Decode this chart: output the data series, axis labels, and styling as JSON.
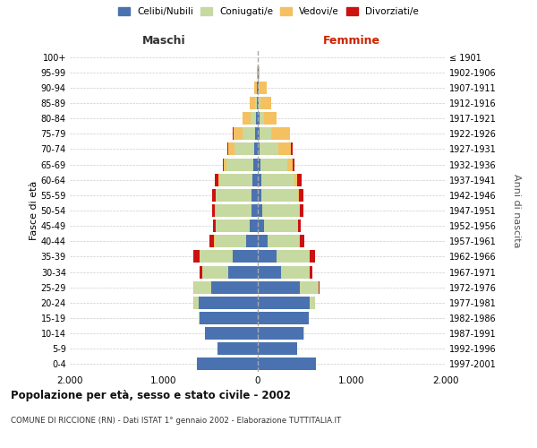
{
  "age_groups": [
    "0-4",
    "5-9",
    "10-14",
    "15-19",
    "20-24",
    "25-29",
    "30-34",
    "35-39",
    "40-44",
    "45-49",
    "50-54",
    "55-59",
    "60-64",
    "65-69",
    "70-74",
    "75-79",
    "80-84",
    "85-89",
    "90-94",
    "95-99",
    "100+"
  ],
  "birth_years": [
    "1997-2001",
    "1992-1996",
    "1987-1991",
    "1982-1986",
    "1977-1981",
    "1972-1976",
    "1967-1971",
    "1962-1966",
    "1957-1961",
    "1952-1956",
    "1947-1951",
    "1942-1946",
    "1937-1941",
    "1932-1936",
    "1927-1931",
    "1922-1926",
    "1917-1921",
    "1912-1916",
    "1907-1911",
    "1902-1906",
    "≤ 1901"
  ],
  "colors": {
    "celibi": "#4a72b0",
    "coniugati": "#c6d9a0",
    "vedovi": "#f5c060",
    "divorziati": "#cc1111"
  },
  "male": {
    "celibi": [
      650,
      430,
      560,
      620,
      630,
      500,
      310,
      270,
      120,
      90,
      70,
      65,
      60,
      50,
      40,
      30,
      20,
      10,
      5,
      3,
      2
    ],
    "coniugati": [
      0,
      0,
      2,
      5,
      50,
      180,
      280,
      350,
      340,
      360,
      380,
      380,
      350,
      280,
      210,
      130,
      60,
      20,
      5,
      0,
      0
    ],
    "vedovi": [
      0,
      0,
      0,
      0,
      2,
      2,
      2,
      2,
      2,
      2,
      5,
      5,
      10,
      30,
      60,
      100,
      80,
      60,
      30,
      5,
      0
    ],
    "divorziati": [
      0,
      0,
      0,
      0,
      2,
      5,
      30,
      60,
      50,
      25,
      35,
      40,
      40,
      15,
      15,
      5,
      2,
      0,
      0,
      0,
      0
    ]
  },
  "female": {
    "nubili": [
      620,
      420,
      490,
      540,
      550,
      450,
      250,
      200,
      100,
      65,
      50,
      40,
      35,
      30,
      20,
      20,
      15,
      10,
      10,
      5,
      2
    ],
    "coniugate": [
      0,
      0,
      2,
      5,
      60,
      200,
      300,
      350,
      340,
      360,
      390,
      390,
      360,
      280,
      200,
      120,
      55,
      15,
      5,
      0,
      0
    ],
    "vedove": [
      0,
      0,
      0,
      0,
      2,
      2,
      2,
      2,
      3,
      5,
      8,
      10,
      20,
      60,
      130,
      200,
      130,
      120,
      80,
      10,
      0
    ],
    "divorziate": [
      0,
      0,
      0,
      0,
      2,
      5,
      30,
      60,
      50,
      30,
      40,
      50,
      55,
      20,
      20,
      5,
      2,
      0,
      0,
      0,
      0
    ]
  },
  "xlim": 2000,
  "title": "Popolazione per età, sesso e stato civile - 2002",
  "subtitle": "COMUNE DI RICCIONE (RN) - Dati ISTAT 1° gennaio 2002 - Elaborazione TUTTITALIA.IT",
  "ylabel_left": "Fasce di età",
  "ylabel_right": "Anni di nascita",
  "xlabel_left": "Maschi",
  "xlabel_right": "Femmine",
  "bg_color": "#ffffff",
  "grid_color": "#cccccc"
}
